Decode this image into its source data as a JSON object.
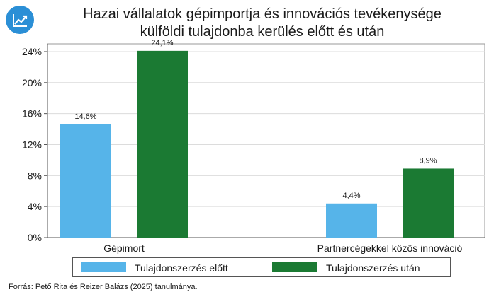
{
  "header": {
    "logo_icon": "trend-chart-icon",
    "title_line1": "Hazai vállalatok gépimportja és innovációs tevékenysége",
    "title_line2": "külföldi tulajdonba kerülés előtt és után"
  },
  "chart_data": {
    "type": "bar",
    "title": "Hazai vállalatok gépimportja és innovációs tevékenysége külföldi tulajdonba kerülés előtt és után",
    "categories": [
      "Gépimort",
      "Partnercégekkel közös innováció"
    ],
    "series": [
      {
        "name": "Tulajdonszerzés előtt",
        "values": [
          14.6,
          4.4
        ],
        "labels": [
          "14,6%",
          "4,4%"
        ],
        "color": "#56b4e9"
      },
      {
        "name": "Tulajdonszerzés után",
        "values": [
          24.1,
          8.9
        ],
        "labels": [
          "24,1%",
          "8,9%"
        ],
        "color": "#1b7a33"
      }
    ],
    "ylim": [
      0,
      25
    ],
    "yticks": [
      0,
      4,
      8,
      12,
      16,
      20,
      24
    ],
    "ytick_labels": [
      "0%",
      "4%",
      "8%",
      "12%",
      "16%",
      "20%",
      "24%"
    ],
    "grid": true,
    "legend_position": "bottom"
  },
  "source": "Forrás: Pető Rita és Reizer Balázs (2025) tanulmánya."
}
